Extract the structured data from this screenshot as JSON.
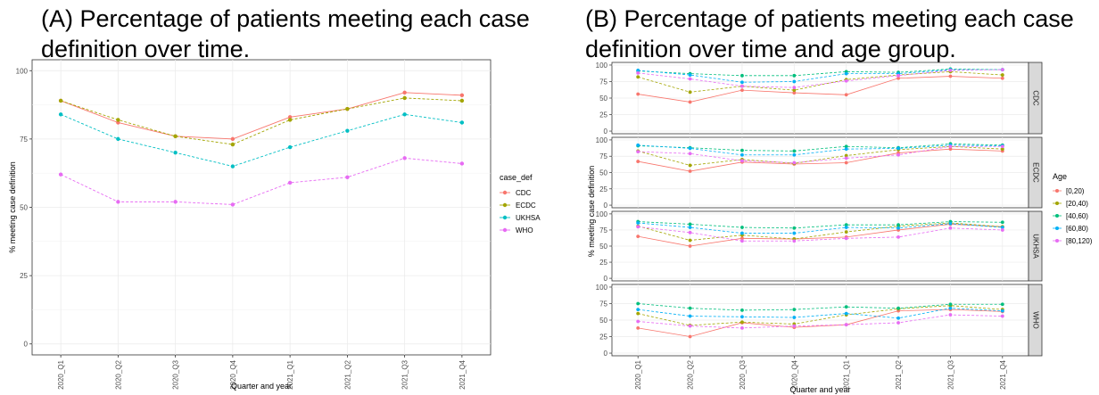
{
  "panel_a": {
    "title": "(A) Percentage of patients meeting each case\n definition over time."
  },
  "panel_b": {
    "title": "(B) Percentage of patients meeting each case\n definition over time and age group."
  },
  "colors": {
    "CDC": "#F8766D",
    "ECDC": "#A3A500",
    "UKHSA": "#00BFC4",
    "WHO": "#E76BF3",
    "[0,20)": "#F8766D",
    "[20,40)": "#A3A500",
    "[40,60)": "#00BF7D",
    "[60,80)": "#00B0F6",
    "[80,120)": "#E76BF3"
  },
  "chart_data": [
    {
      "type": "line",
      "title": "(A) Percentage of patients meeting each case\n definition over time.",
      "xlabel": "Quarter and year",
      "ylabel": "% meeting case definition",
      "categories": [
        "2020_Q1",
        "2020_Q2",
        "2020_Q3",
        "2020_Q4",
        "2021_Q1",
        "2021_Q2",
        "2021_Q3",
        "2021_Q4"
      ],
      "ylim": [
        -4,
        104
      ],
      "yticks": [
        0,
        25,
        50,
        75,
        100
      ],
      "grid": true,
      "legend": {
        "title": "case_def",
        "placement": "right"
      },
      "series": [
        {
          "name": "CDC",
          "values": [
            89,
            81,
            76,
            75,
            83,
            86,
            92,
            91
          ],
          "dashed": false
        },
        {
          "name": "ECDC",
          "values": [
            89,
            82,
            76,
            73,
            82,
            86,
            90,
            89
          ],
          "dashed": true
        },
        {
          "name": "UKHSA",
          "values": [
            84,
            75,
            70,
            65,
            72,
            78,
            84,
            81
          ],
          "dashed": true
        },
        {
          "name": "WHO",
          "values": [
            62,
            52,
            52,
            51,
            59,
            61,
            68,
            66
          ],
          "dashed": true
        }
      ]
    },
    {
      "type": "line",
      "title": "(B) Percentage of patients meeting each case\n definition over time and age group.",
      "xlabel": "Quarter and year",
      "ylabel": "% meeting case definition",
      "categories": [
        "2020_Q1",
        "2020_Q2",
        "2020_Q3",
        "2020_Q4",
        "2021_Q1",
        "2021_Q2",
        "2021_Q3",
        "2021_Q4"
      ],
      "ylim": [
        -4,
        104
      ],
      "yticks": [
        0,
        25,
        50,
        75,
        100
      ],
      "grid": true,
      "legend": {
        "title": "Age",
        "placement": "right"
      },
      "facets": [
        {
          "name": "CDC",
          "series": [
            {
              "name": "[0,20)",
              "values": [
                56,
                44,
                62,
                58,
                55,
                80,
                83,
                80
              ]
            },
            {
              "name": "[20,40)",
              "values": [
                82,
                59,
                68,
                62,
                78,
                85,
                90,
                85
              ]
            },
            {
              "name": "[40,60)",
              "values": [
                91,
                87,
                84,
                84,
                90,
                89,
                94,
                93
              ]
            },
            {
              "name": "[60,80)",
              "values": [
                92,
                85,
                74,
                75,
                87,
                87,
                93,
                93
              ]
            },
            {
              "name": "[80,120)",
              "values": [
                88,
                79,
                68,
                66,
                76,
                84,
                92,
                93
              ]
            }
          ]
        },
        {
          "name": "ECDC",
          "series": [
            {
              "name": "[0,20)",
              "values": [
                67,
                52,
                66,
                63,
                65,
                80,
                86,
                83
              ]
            },
            {
              "name": "[20,40)",
              "values": [
                83,
                61,
                70,
                64,
                76,
                85,
                90,
                86
              ]
            },
            {
              "name": "[40,60)",
              "values": [
                91,
                88,
                84,
                83,
                90,
                88,
                94,
                92
              ]
            },
            {
              "name": "[60,80)",
              "values": [
                92,
                87,
                77,
                77,
                86,
                87,
                92,
                91
              ]
            },
            {
              "name": "[80,120)",
              "values": [
                82,
                79,
                68,
                65,
                72,
                77,
                90,
                90
              ]
            }
          ]
        },
        {
          "name": "UKHSA",
          "series": [
            {
              "name": "[0,20)",
              "values": [
                65,
                50,
                62,
                61,
                64,
                75,
                84,
                80
              ]
            },
            {
              "name": "[20,40)",
              "values": [
                81,
                59,
                67,
                61,
                72,
                81,
                86,
                80
              ]
            },
            {
              "name": "[40,60)",
              "values": [
                88,
                84,
                79,
                78,
                83,
                83,
                88,
                87
              ]
            },
            {
              "name": "[60,80)",
              "values": [
                86,
                79,
                70,
                70,
                79,
                78,
                85,
                79
              ]
            },
            {
              "name": "[80,120)",
              "values": [
                80,
                71,
                58,
                58,
                62,
                64,
                78,
                75
              ]
            }
          ]
        },
        {
          "name": "WHO",
          "series": [
            {
              "name": "[0,20)",
              "values": [
                38,
                25,
                46,
                39,
                43,
                64,
                66,
                63
              ]
            },
            {
              "name": "[20,40)",
              "values": [
                60,
                42,
                47,
                44,
                58,
                67,
                72,
                66
              ]
            },
            {
              "name": "[40,60)",
              "values": [
                75,
                68,
                65,
                66,
                70,
                68,
                74,
                74
              ]
            },
            {
              "name": "[60,80)",
              "values": [
                66,
                56,
                55,
                54,
                60,
                53,
                68,
                64
              ]
            },
            {
              "name": "[80,120)",
              "values": [
                48,
                41,
                38,
                41,
                43,
                46,
                58,
                56
              ]
            }
          ]
        }
      ]
    }
  ]
}
